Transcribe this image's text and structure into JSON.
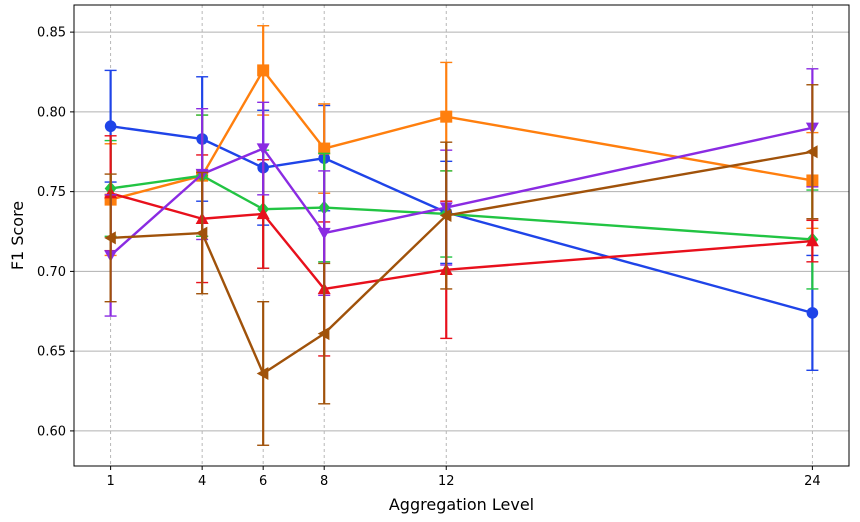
{
  "chart_data": {
    "type": "line",
    "title": "",
    "xlabel": "Aggregation Level",
    "ylabel": "F1 Score",
    "x": [
      1,
      4,
      6,
      8,
      12,
      24
    ],
    "x_tick_labels": [
      "1",
      "4",
      "6",
      "8",
      "12",
      "24"
    ],
    "xlim": [
      -0.2,
      25.2
    ],
    "ylim": [
      0.578,
      0.867
    ],
    "y_ticks": [
      0.6,
      0.65,
      0.7,
      0.75,
      0.8,
      0.85
    ],
    "y_tick_labels": [
      "0.60",
      "0.65",
      "0.70",
      "0.75",
      "0.80",
      "0.85"
    ],
    "grid": {
      "x": "dashed",
      "y": "solid"
    },
    "legend": "none",
    "series": [
      {
        "name": "series-blue",
        "color": "#1f44e8",
        "marker": "circle",
        "values": [
          0.791,
          0.783,
          0.765,
          0.771,
          0.737,
          0.674
        ],
        "errors": [
          0.035,
          0.039,
          0.036,
          0.033,
          0.032,
          0.036
        ]
      },
      {
        "name": "series-orange",
        "color": "#ff7f0e",
        "marker": "square",
        "values": [
          0.745,
          0.76,
          0.826,
          0.777,
          0.797,
          0.757
        ],
        "errors": [
          0.035,
          0.038,
          0.028,
          0.028,
          0.034,
          0.03
        ]
      },
      {
        "name": "series-green",
        "color": "#22c443",
        "marker": "diamond",
        "values": [
          0.752,
          0.76,
          0.739,
          0.74,
          0.736,
          0.72
        ],
        "errors": [
          0.03,
          0.038,
          0.037,
          0.034,
          0.027,
          0.031
        ]
      },
      {
        "name": "series-red",
        "color": "#e8101c",
        "marker": "triangle-up",
        "values": [
          0.749,
          0.733,
          0.736,
          0.689,
          0.701,
          0.719
        ],
        "errors": [
          0.036,
          0.04,
          0.034,
          0.042,
          0.043,
          0.013
        ]
      },
      {
        "name": "series-purple",
        "color": "#8a2be2",
        "marker": "triangle-down",
        "values": [
          0.71,
          0.761,
          0.777,
          0.724,
          0.74,
          0.79
        ],
        "errors": [
          0.038,
          0.041,
          0.029,
          0.039,
          0.036,
          0.037
        ]
      },
      {
        "name": "series-brown",
        "color": "#a0520a",
        "marker": "triangle-left",
        "values": [
          0.721,
          0.724,
          0.636,
          0.661,
          0.735,
          0.775
        ],
        "errors": [
          0.04,
          0.038,
          0.045,
          0.044,
          0.046,
          0.042
        ]
      }
    ]
  }
}
